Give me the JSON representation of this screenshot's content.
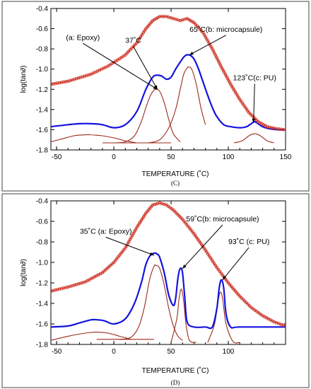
{
  "chart_data": [
    {
      "type": "line",
      "panel_caption": "(C)",
      "xlabel": "TEMPERATURE (˚C)",
      "ylabel": "log(tan∂)",
      "xlim": [
        -55,
        150
      ],
      "ylim": [
        -1.8,
        -0.4
      ],
      "x_ticks": [
        -50,
        0,
        50,
        100,
        150
      ],
      "y_ticks": [
        -0.4,
        -0.6,
        -0.8,
        -1.0,
        -1.2,
        -1.4,
        -1.6,
        -1.8
      ],
      "grid": false,
      "series": [
        {
          "style": "markers",
          "color": "#cc2b1d",
          "x": [
            -55,
            -40,
            -20,
            -5,
            10,
            20,
            28,
            34,
            40,
            46,
            52,
            58,
            64,
            70,
            78,
            86,
            94,
            102,
            110,
            118,
            126,
            134,
            142,
            150
          ],
          "y": [
            -1.15,
            -1.12,
            -1.05,
            -0.97,
            -0.86,
            -0.74,
            -0.6,
            -0.52,
            -0.48,
            -0.48,
            -0.5,
            -0.52,
            -0.5,
            -0.54,
            -0.64,
            -0.8,
            -0.98,
            -1.15,
            -1.3,
            -1.43,
            -1.52,
            -1.57,
            -1.59,
            -1.6
          ]
        },
        {
          "style": "line",
          "color": "#1414e0",
          "x": [
            -55,
            -40,
            -30,
            -20,
            -10,
            0,
            10,
            20,
            28,
            34,
            38,
            42,
            46,
            50,
            54,
            58,
            62,
            66,
            70,
            74,
            78,
            82,
            86,
            90,
            96,
            102,
            110,
            116,
            120,
            123,
            126,
            130,
            136,
            143,
            150
          ],
          "y": [
            -1.57,
            -1.55,
            -1.54,
            -1.54,
            -1.55,
            -1.58,
            -1.55,
            -1.42,
            -1.2,
            -1.08,
            -1.06,
            -1.07,
            -1.1,
            -1.08,
            -1.0,
            -0.93,
            -0.87,
            -0.86,
            -0.9,
            -1.0,
            -1.13,
            -1.26,
            -1.38,
            -1.47,
            -1.55,
            -1.57,
            -1.58,
            -1.57,
            -1.54,
            -1.52,
            -1.54,
            -1.57,
            -1.59,
            -1.6,
            -1.6
          ]
        },
        {
          "style": "line",
          "color": "#9b2a1a",
          "x": [
            -55,
            -45,
            -35,
            -25,
            -20,
            -10,
            0,
            10,
            20
          ],
          "y": [
            -1.72,
            -1.69,
            -1.66,
            -1.65,
            -1.65,
            -1.66,
            -1.68,
            -1.71,
            -1.73
          ]
        },
        {
          "style": "line",
          "color": "#9b2a1a",
          "x": [
            0,
            10,
            18,
            24,
            28,
            32,
            35,
            37,
            40,
            44,
            48,
            52,
            58
          ],
          "y": [
            -1.73,
            -1.72,
            -1.66,
            -1.52,
            -1.38,
            -1.26,
            -1.21,
            -1.2,
            -1.22,
            -1.33,
            -1.5,
            -1.64,
            -1.72
          ]
        },
        {
          "style": "line",
          "color": "#9b2a1a",
          "x": [
            30,
            40,
            48,
            54,
            58,
            61,
            64,
            65,
            68,
            72,
            76,
            80
          ],
          "y": [
            -1.73,
            -1.7,
            -1.58,
            -1.4,
            -1.2,
            -1.05,
            -0.99,
            -0.98,
            -1.0,
            -1.15,
            -1.38,
            -1.55
          ]
        },
        {
          "style": "line",
          "color": "#9b2a1a",
          "x": [
            105,
            112,
            118,
            123,
            128,
            134,
            140
          ],
          "y": [
            -1.73,
            -1.71,
            -1.66,
            -1.64,
            -1.66,
            -1.71,
            -1.73
          ]
        },
        {
          "style": "line",
          "color": "#9b2a1a",
          "x": [
            -10,
            50
          ],
          "y": [
            -1.73,
            -1.73
          ]
        }
      ],
      "annotations": [
        {
          "text": "(a: Epoxy)",
          "label_x": -27,
          "label_y": -0.71,
          "target_x": 38,
          "target_y": -1.2
        },
        {
          "text": "37˚C",
          "label_x": 17,
          "label_y": -0.74,
          "target_x": 38,
          "target_y": -1.2
        },
        {
          "text": "65˚C(b: microcapsule)",
          "label_x": 98,
          "label_y": -0.63,
          "target_x": 66,
          "target_y": -0.86
        },
        {
          "text": "123˚C(c: PU)",
          "label_x": 123,
          "label_y": -1.11,
          "target_x": 122,
          "target_y": -1.53
        }
      ]
    },
    {
      "type": "line",
      "panel_caption": "(D)",
      "xlabel": "TEMPERATURE (˚C)",
      "ylabel": "log(tan∂)",
      "xlim": [
        -55,
        150
      ],
      "ylim": [
        -1.8,
        -0.4
      ],
      "x_ticks": [
        -50,
        0,
        50,
        100
      ],
      "y_ticks": [
        -0.4,
        -0.6,
        -0.8,
        -1.0,
        -1.2,
        -1.4,
        -1.6,
        -1.8
      ],
      "grid": false,
      "series": [
        {
          "style": "markers",
          "color": "#cc2b1d",
          "x": [
            -55,
            -40,
            -25,
            -10,
            0,
            10,
            20,
            28,
            34,
            40,
            46,
            52,
            60,
            70,
            80,
            90,
            100,
            110,
            120,
            130,
            140,
            150
          ],
          "y": [
            -1.28,
            -1.24,
            -1.19,
            -1.1,
            -1.0,
            -0.86,
            -0.66,
            -0.52,
            -0.44,
            -0.42,
            -0.44,
            -0.49,
            -0.58,
            -0.72,
            -0.88,
            -1.05,
            -1.2,
            -1.33,
            -1.44,
            -1.52,
            -1.58,
            -1.62
          ]
        },
        {
          "style": "line",
          "color": "#1414e0",
          "x": [
            -55,
            -40,
            -30,
            -20,
            -14,
            -8,
            0,
            10,
            18,
            24,
            28,
            32,
            36,
            38,
            40,
            44,
            48,
            52,
            54,
            56,
            58,
            60,
            62,
            64,
            70,
            80,
            86,
            90,
            92,
            94,
            96,
            98,
            102,
            110,
            150
          ],
          "y": [
            -1.63,
            -1.62,
            -1.59,
            -1.56,
            -1.56,
            -1.57,
            -1.6,
            -1.55,
            -1.4,
            -1.2,
            -1.02,
            -0.93,
            -0.91,
            -0.92,
            -0.95,
            -1.1,
            -1.32,
            -1.42,
            -1.35,
            -1.15,
            -1.06,
            -1.1,
            -1.35,
            -1.58,
            -1.63,
            -1.63,
            -1.63,
            -1.45,
            -1.25,
            -1.17,
            -1.25,
            -1.5,
            -1.63,
            -1.63,
            -1.63
          ]
        },
        {
          "style": "line",
          "color": "#9b2a1a",
          "x": [
            -55,
            -40,
            -25,
            -15,
            -5,
            5,
            15
          ],
          "y": [
            -1.76,
            -1.72,
            -1.69,
            -1.68,
            -1.69,
            -1.72,
            -1.75
          ]
        },
        {
          "style": "line",
          "color": "#9b2a1a",
          "x": [
            5,
            15,
            22,
            27,
            31,
            35,
            37,
            40,
            44,
            48,
            52,
            56,
            60
          ],
          "y": [
            -1.75,
            -1.73,
            -1.62,
            -1.42,
            -1.18,
            -1.04,
            -1.03,
            -1.06,
            -1.22,
            -1.45,
            -1.62,
            -1.72,
            -1.76
          ]
        },
        {
          "style": "line",
          "color": "#9b2a1a",
          "x": [
            50,
            55,
            57,
            59,
            61,
            63,
            66,
            72
          ],
          "y": [
            -1.78,
            -1.55,
            -1.35,
            -1.26,
            -1.38,
            -1.6,
            -1.76,
            -1.78
          ]
        },
        {
          "style": "line",
          "color": "#9b2a1a",
          "x": [
            82,
            88,
            91,
            93,
            95,
            98,
            104,
            110
          ],
          "y": [
            -1.78,
            -1.6,
            -1.38,
            -1.29,
            -1.35,
            -1.6,
            -1.77,
            -1.78
          ]
        },
        {
          "style": "line",
          "color": "#9b2a1a",
          "x": [
            -15,
            35
          ],
          "y": [
            -1.75,
            -1.75
          ]
        }
      ],
      "annotations": [
        {
          "text": "35˚C (a: Epoxy)",
          "label_x": -7,
          "label_y": -0.72,
          "target_x": 35,
          "target_y": -0.93
        },
        {
          "text": "59˚C(b: microcapsule)",
          "label_x": 95,
          "label_y": -0.6,
          "target_x": 60,
          "target_y": -1.06
        },
        {
          "text": "93˚C (c: PU)",
          "label_x": 118,
          "label_y": -0.82,
          "target_x": 95,
          "target_y": -1.17
        }
      ]
    }
  ]
}
